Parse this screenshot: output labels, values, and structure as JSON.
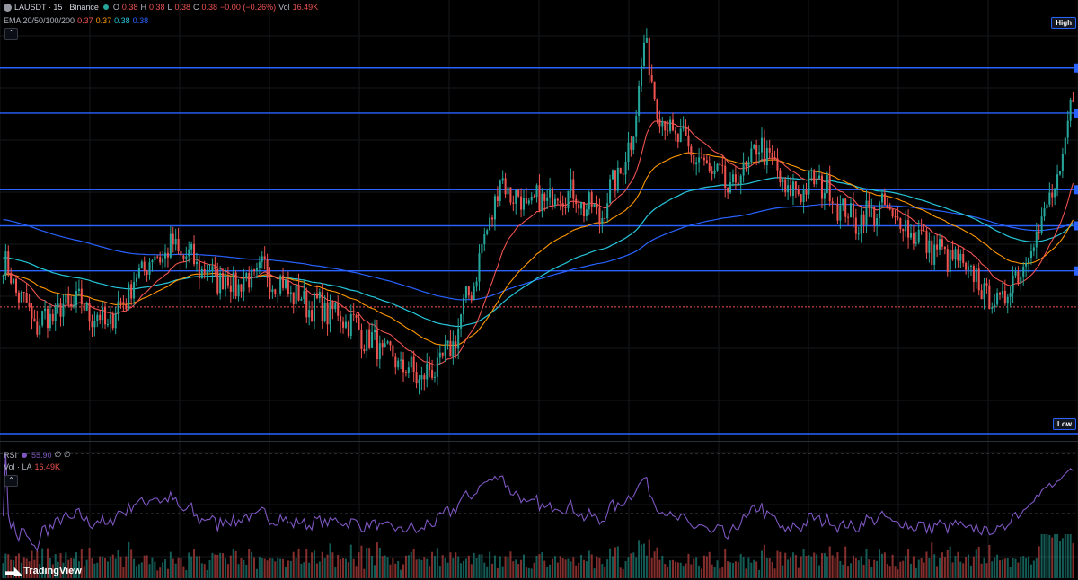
{
  "header": {
    "symbol": "LAUSDT · 15 · Binance",
    "ohlc": {
      "o_label": "O",
      "o": "0.38",
      "h_label": "H",
      "h": "0.38",
      "l_label": "L",
      "l": "0.38",
      "c_label": "C",
      "c": "0.38",
      "change": "−0.00 (−0.26%)",
      "vol_label": "Vol",
      "vol": "16.49K"
    },
    "ema_label": "EMA 20/50/100/200",
    "ema_values": [
      "0.37",
      "0.37",
      "0.38",
      "0.38"
    ]
  },
  "rsi_legend": {
    "label": "RSI",
    "value": "55.90",
    "extra": "∅ ∅"
  },
  "vol_legend": {
    "label": "Vol · LA",
    "value": "16.49K"
  },
  "tags": {
    "high": "High",
    "low": "Low"
  },
  "branding": {
    "logo_text": "TradingView"
  },
  "colors": {
    "up": "#26a69a",
    "down": "#ef5350",
    "ema20": "#ef5350",
    "ema50": "#ff9800",
    "ema100": "#26c6da",
    "ema200": "#2962ff",
    "rsi": "#7e57c2",
    "hline": "#2962ff"
  },
  "chart_data": {
    "type": "candlestick",
    "price_axis_visible": false,
    "horizontal_levels": [
      0.435,
      0.425,
      0.408,
      0.4,
      0.39
    ],
    "current_price": 0.382,
    "series": [
      {
        "name": "EMA 20",
        "values": []
      },
      {
        "name": "EMA 50",
        "values": []
      },
      {
        "name": "EMA 100",
        "values": []
      },
      {
        "name": "EMA 200",
        "values": []
      },
      {
        "name": "RSI",
        "values": []
      },
      {
        "name": "Vol",
        "values": []
      }
    ],
    "keypoints": [
      [
        0,
        0.392
      ],
      [
        12,
        0.378
      ],
      [
        28,
        0.383
      ],
      [
        40,
        0.378
      ],
      [
        55,
        0.392
      ],
      [
        65,
        0.395
      ],
      [
        80,
        0.389
      ],
      [
        90,
        0.387
      ],
      [
        100,
        0.39
      ],
      [
        115,
        0.383
      ],
      [
        130,
        0.38
      ],
      [
        145,
        0.372
      ],
      [
        160,
        0.366
      ],
      [
        170,
        0.371
      ],
      [
        180,
        0.388
      ],
      [
        190,
        0.41
      ],
      [
        200,
        0.404
      ],
      [
        215,
        0.408
      ],
      [
        228,
        0.402
      ],
      [
        240,
        0.418
      ],
      [
        245,
        0.44
      ],
      [
        252,
        0.423
      ],
      [
        265,
        0.415
      ],
      [
        278,
        0.408
      ],
      [
        290,
        0.418
      ],
      [
        300,
        0.407
      ],
      [
        312,
        0.41
      ],
      [
        325,
        0.401
      ],
      [
        335,
        0.404
      ],
      [
        345,
        0.4
      ],
      [
        355,
        0.395
      ],
      [
        362,
        0.393
      ],
      [
        372,
        0.388
      ],
      [
        380,
        0.382
      ],
      [
        390,
        0.392
      ],
      [
        400,
        0.405
      ],
      [
        405,
        0.413
      ],
      [
        409,
        0.43
      ]
    ]
  }
}
